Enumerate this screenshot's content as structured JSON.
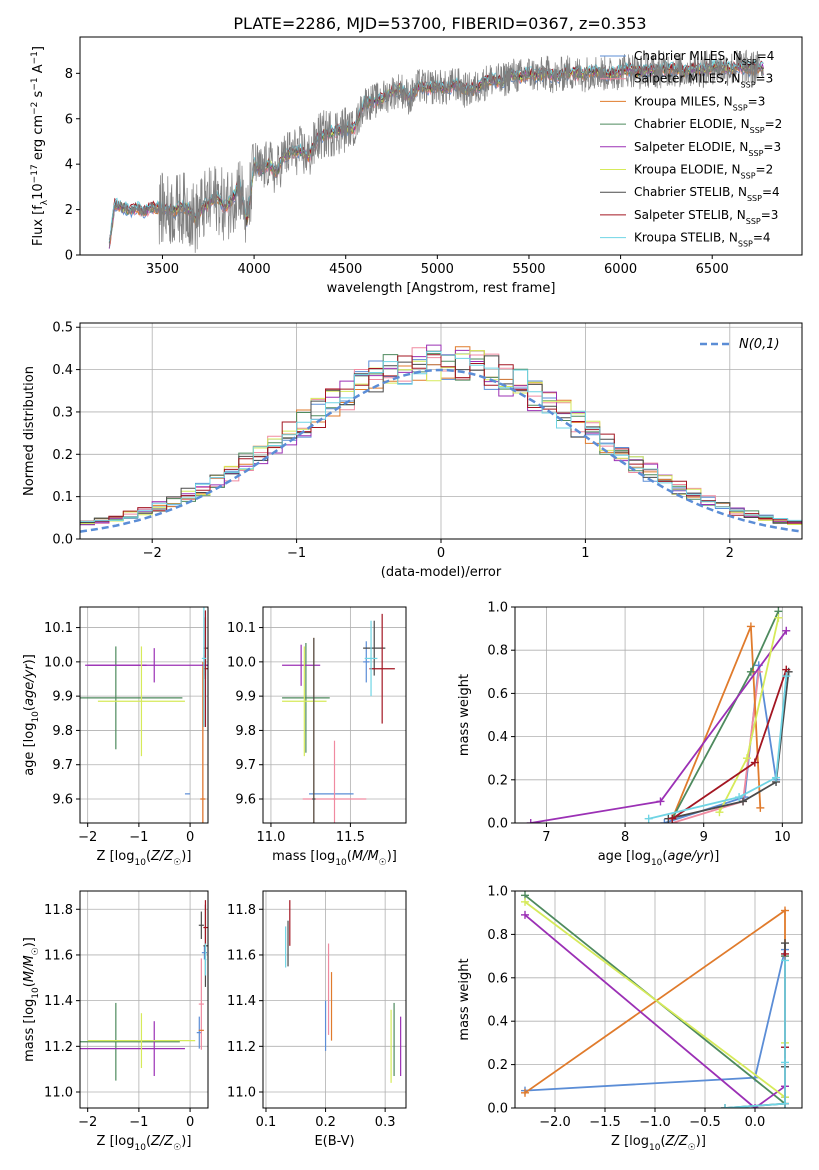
{
  "title": "PLATE=2286, MJD=53700, FIBERID=0367, z=0.353",
  "models": [
    {
      "name": "Chabrier MILES, N_SSP=4",
      "imf": "Chabrier",
      "lib": "MILES",
      "nssp": "4",
      "color": "#5b8dd6"
    },
    {
      "name": "Salpeter MILES, N_SSP=3",
      "imf": "Salpeter",
      "lib": "MILES",
      "nssp": "3",
      "color": "#f08aa0"
    },
    {
      "name": "Kroupa MILES, N_SSP=3",
      "imf": "Kroupa",
      "lib": "MILES",
      "nssp": "3",
      "color": "#e07b2c"
    },
    {
      "name": "Chabrier ELODIE, N_SSP=2",
      "imf": "Chabrier",
      "lib": "ELODIE",
      "nssp": "2",
      "color": "#4e8a5e"
    },
    {
      "name": "Salpeter ELODIE, N_SSP=3",
      "imf": "Salpeter",
      "lib": "ELODIE",
      "nssp": "3",
      "color": "#9b30b5"
    },
    {
      "name": "Kroupa ELODIE, N_SSP=2",
      "imf": "Kroupa",
      "lib": "ELODIE",
      "nssp": "2",
      "color": "#d6ea5a"
    },
    {
      "name": "Chabrier STELIB, N_SSP=4",
      "imf": "Chabrier",
      "lib": "STELIB",
      "nssp": "4",
      "color": "#4a4a4a"
    },
    {
      "name": "Salpeter STELIB, N_SSP=3",
      "imf": "Salpeter",
      "lib": "STELIB",
      "nssp": "3",
      "color": "#a31622"
    },
    {
      "name": "Kroupa STELIB, N_SSP=4",
      "imf": "Kroupa",
      "lib": "STELIB",
      "nssp": "4",
      "color": "#6fd4e4"
    }
  ],
  "observed_color": "#7f7f7f",
  "chart_data": [
    {
      "id": "spectrum",
      "type": "line",
      "xlabel": "wavelength [Angstrom, rest frame]",
      "ylabel": "Flux [f_λ 10^-17 erg cm^-2 s^-1 A^-1]",
      "xlim": [
        3050,
        6990
      ],
      "ylim": [
        0,
        9.6
      ],
      "xticks": [
        3500,
        4000,
        4500,
        5000,
        5500,
        6000,
        6500
      ],
      "yticks": [
        0,
        2,
        4,
        6,
        8
      ],
      "legend": "top-right",
      "x": [
        3210,
        3240,
        3280,
        3320,
        3360,
        3400,
        3440,
        3480,
        3520,
        3560,
        3600,
        3640,
        3680,
        3720,
        3760,
        3800,
        3840,
        3880,
        3920,
        3960,
        4000,
        4040,
        4080,
        4120,
        4160,
        4200,
        4250,
        4300,
        4350,
        4400,
        4450,
        4500,
        4550,
        4600,
        4650,
        4700,
        4750,
        4800,
        4850,
        4900,
        4950,
        5000,
        5050,
        5100,
        5150,
        5200,
        5250,
        5300,
        5350,
        5400,
        5450,
        5500,
        5550,
        5600,
        5650,
        5700,
        5750,
        5800,
        5850,
        5900,
        5950,
        6000,
        6050,
        6100,
        6150,
        6200,
        6250,
        6300,
        6350,
        6400,
        6450,
        6500,
        6550,
        6600,
        6650,
        6700,
        6770
      ],
      "model_flux": [
        0.4,
        2.2,
        2.1,
        1.95,
        2.05,
        1.9,
        2.1,
        2.05,
        2.0,
        1.95,
        2.1,
        2.05,
        1.55,
        2.1,
        2.3,
        2.55,
        2.1,
        2.4,
        3.2,
        1.4,
        4.0,
        3.7,
        4.05,
        3.6,
        4.35,
        4.5,
        4.6,
        4.35,
        5.2,
        5.35,
        5.45,
        5.55,
        5.6,
        6.7,
        6.75,
        6.9,
        7.15,
        7.3,
        6.9,
        7.45,
        7.35,
        7.45,
        7.3,
        7.55,
        7.25,
        7.3,
        7.55,
        7.75,
        7.6,
        7.95,
        7.85,
        8.0,
        7.9,
        8.0,
        7.8,
        8.05,
        8.0,
        7.95,
        8.1,
        8.0,
        7.95,
        8.1,
        8.2,
        8.05,
        8.15,
        8.1,
        8.2,
        8.15,
        8.1,
        8.2,
        8.15,
        8.3,
        8.25,
        8.2,
        8.3,
        8.2,
        8.25
      ]
    },
    {
      "id": "residuals",
      "type": "step",
      "xlabel": "(data-model)/error",
      "ylabel": "Normed distribution",
      "xlim": [
        -2.5,
        2.5
      ],
      "ylim": [
        0,
        0.51
      ],
      "xticks": [
        -2,
        -1,
        0,
        1,
        2
      ],
      "yticks": [
        0.0,
        0.1,
        0.2,
        0.3,
        0.4,
        0.5
      ],
      "grid": true,
      "legend": "top-right",
      "reference": {
        "label": "N(0,1)",
        "color": "#5b8dd6"
      },
      "bin_edges_start": -2.5,
      "bin_width": 0.1
    },
    {
      "id": "age_vs_Z",
      "type": "errorbar",
      "xlabel": "Z [log10(Z/Z☉)]",
      "ylabel": "age [log10(age/yr)]",
      "xlim": [
        -2.15,
        0.35
      ],
      "ylim": [
        9.53,
        10.16
      ],
      "xticks": [
        -2,
        -1,
        0
      ],
      "yticks": [
        9.6,
        9.7,
        9.8,
        9.9,
        10.0,
        10.1
      ],
      "grid": true,
      "points": [
        {
          "m": 0,
          "x": 0.3,
          "xe": 0.05,
          "y": 9.99,
          "ye": 0.03
        },
        {
          "m": 0,
          "x": -0.05,
          "xe": 0.05,
          "y": 9.615,
          "ye": 0.0
        },
        {
          "m": 1,
          "x": 0.25,
          "xe": 0.05,
          "y": 9.6,
          "ye": 0.4
        },
        {
          "m": 2,
          "x": 0.25,
          "xe": 0.05,
          "y": 9.6,
          "ye": 0.4
        },
        {
          "m": 3,
          "x": -1.45,
          "xe": 1.3,
          "y": 9.895,
          "ye": 0.15
        },
        {
          "m": 4,
          "x": -0.7,
          "xe": 1.3,
          "y": 9.99,
          "ye": 0.05
        },
        {
          "m": 4,
          "x": -1.45,
          "xe": 0.6,
          "y": 9.99,
          "ye": 0.0
        },
        {
          "m": 5,
          "x": -0.95,
          "xe": 0.85,
          "y": 9.885,
          "ye": 0.16
        },
        {
          "m": 6,
          "x": 0.3,
          "xe": 0.04,
          "y": 10.04,
          "ye": 0.09
        },
        {
          "m": 7,
          "x": 0.3,
          "xe": 0.04,
          "y": 9.98,
          "ye": 0.17
        },
        {
          "m": 8,
          "x": 0.27,
          "xe": 0.04,
          "y": 10.01,
          "ye": 0.2
        }
      ]
    },
    {
      "id": "age_vs_mass",
      "type": "errorbar",
      "xlabel": "mass [log10(M/M☉)]",
      "ylabel": "",
      "xlim": [
        10.95,
        11.85
      ],
      "ylim": [
        9.53,
        10.16
      ],
      "xticks": [
        11.0,
        11.5
      ],
      "yticks": [
        9.6,
        9.7,
        9.8,
        9.9,
        10.0,
        10.1
      ],
      "grid": true,
      "points": [
        {
          "m": 0,
          "x": 11.38,
          "xe": 0.14,
          "y": 9.615,
          "ye": 0.0
        },
        {
          "m": 0,
          "x": 11.6,
          "xe": 0.02,
          "y": 10.0,
          "ye": 0.06
        },
        {
          "m": 1,
          "x": 11.4,
          "xe": 0.2,
          "y": 9.6,
          "ye": 0.0
        },
        {
          "m": 1,
          "x": 11.4,
          "xe": 0.01,
          "y": 9.6,
          "ye": 0.17
        },
        {
          "m": 2,
          "x": 11.27,
          "xe": 0.0,
          "y": 9.6,
          "ye": 0.47
        },
        {
          "m": 3,
          "x": 11.22,
          "xe": 0.15,
          "y": 9.895,
          "ye": 0.16
        },
        {
          "m": 4,
          "x": 11.19,
          "xe": 0.12,
          "y": 9.99,
          "ye": 0.06
        },
        {
          "m": 5,
          "x": 11.21,
          "xe": 0.14,
          "y": 9.885,
          "ye": 0.16
        },
        {
          "m": 6,
          "x": 11.65,
          "xe": 0.07,
          "y": 10.04,
          "ye": 0.08
        },
        {
          "m": 7,
          "x": 11.7,
          "xe": 0.08,
          "y": 9.98,
          "ye": 0.16
        },
        {
          "m": 8,
          "x": 11.63,
          "xe": 0.04,
          "y": 10.01,
          "ye": 0.11
        },
        {
          "m": 6,
          "x": 11.27,
          "xe": 0.01,
          "y": 9.6,
          "ye": 0.47
        }
      ]
    },
    {
      "id": "weight_vs_age",
      "type": "line",
      "xlabel": "age [log10(age/yr)]",
      "ylabel": "mass weight",
      "xlim": [
        6.6,
        10.25
      ],
      "ylim": [
        0,
        1.0
      ],
      "xticks": [
        7,
        8,
        9,
        10
      ],
      "yticks": [
        0.0,
        0.2,
        0.4,
        0.6,
        0.8,
        1.0
      ],
      "grid": true,
      "series": [
        {
          "m": 0,
          "x": [
            8.5,
            9.52,
            9.7,
            9.92
          ],
          "y": [
            0.0,
            0.12,
            0.73,
            0.2
          ]
        },
        {
          "m": 1,
          "x": [
            8.6,
            9.5,
            9.7
          ],
          "y": [
            0.0,
            0.1,
            0.7
          ]
        },
        {
          "m": 2,
          "x": [
            8.6,
            9.6,
            9.72
          ],
          "y": [
            0.02,
            0.91,
            0.07
          ]
        },
        {
          "m": 3,
          "x": [
            8.6,
            9.6,
            9.95
          ],
          "y": [
            0.02,
            0.7,
            0.98
          ]
        },
        {
          "m": 4,
          "x": [
            6.8,
            8.45,
            10.05
          ],
          "y": [
            0.0,
            0.1,
            0.89
          ]
        },
        {
          "m": 5,
          "x": [
            9.2,
            9.55,
            9.95
          ],
          "y": [
            0.05,
            0.3,
            0.95
          ]
        },
        {
          "m": 6,
          "x": [
            8.55,
            9.5,
            9.92,
            10.08
          ],
          "y": [
            0.02,
            0.1,
            0.19,
            0.7
          ]
        },
        {
          "m": 7,
          "x": [
            8.6,
            9.65,
            10.05
          ],
          "y": [
            0.02,
            0.28,
            0.71
          ]
        },
        {
          "m": 8,
          "x": [
            8.3,
            9.45,
            9.92,
            10.05
          ],
          "y": [
            0.02,
            0.12,
            0.21,
            0.68
          ]
        }
      ]
    },
    {
      "id": "mass_vs_Z",
      "type": "errorbar",
      "xlabel": "Z [log10(Z/Z☉)]",
      "ylabel": "mass [log10(M/M☉)]",
      "xlim": [
        -2.15,
        0.35
      ],
      "ylim": [
        10.93,
        11.88
      ],
      "xticks": [
        -2,
        -1,
        0
      ],
      "yticks": [
        11.0,
        11.2,
        11.4,
        11.6,
        11.8
      ],
      "grid": true,
      "points": [
        {
          "m": 0,
          "x": 0.28,
          "xe": 0.05,
          "y": 11.61,
          "ye": 0.03
        },
        {
          "m": 0,
          "x": 0.18,
          "xe": 0.05,
          "y": 11.26,
          "ye": 0.07
        },
        {
          "m": 1,
          "x": 0.22,
          "xe": 0.05,
          "y": 11.385,
          "ye": 0.2
        },
        {
          "m": 2,
          "x": 0.22,
          "xe": 0.05,
          "y": 11.27,
          "ye": 0.0
        },
        {
          "m": 3,
          "x": -1.45,
          "xe": 1.25,
          "y": 11.22,
          "ye": 0.17
        },
        {
          "m": 4,
          "x": -1.15,
          "xe": 1.05,
          "y": 11.19,
          "ye": 0.0
        },
        {
          "m": 4,
          "x": -0.7,
          "xe": 0.0,
          "y": 11.19,
          "ye": 0.12
        },
        {
          "m": 5,
          "x": -0.95,
          "xe": 1.05,
          "y": 11.225,
          "ye": 0.12
        },
        {
          "m": 6,
          "x": 0.3,
          "xe": 0.04,
          "y": 11.64,
          "ye": 0.18
        },
        {
          "m": 7,
          "x": 0.3,
          "xe": 0.04,
          "y": 11.72,
          "ye": 0.12
        },
        {
          "m": 8,
          "x": 0.3,
          "xe": 0.02,
          "y": 11.58,
          "ye": 0.07
        },
        {
          "m": 6,
          "x": 0.22,
          "xe": 0.05,
          "y": 11.73,
          "ye": 0.06
        }
      ]
    },
    {
      "id": "mass_vs_ebv",
      "type": "errorbar",
      "xlabel": "E(B-V)",
      "ylabel": "",
      "xlim": [
        0.095,
        0.335
      ],
      "ylim": [
        10.93,
        11.88
      ],
      "xticks": [
        0.1,
        0.2,
        0.3
      ],
      "yticks": [
        11.0,
        11.2,
        11.4,
        11.6,
        11.8
      ],
      "grid": true,
      "points": [
        {
          "m": 0,
          "x": 0.2,
          "xe": 0.0,
          "y": 11.29,
          "ye": 0.11
        },
        {
          "m": 1,
          "x": 0.205,
          "xe": 0.0,
          "y": 11.45,
          "ye": 0.2
        },
        {
          "m": 2,
          "x": 0.21,
          "xe": 0.0,
          "y": 11.375,
          "ye": 0.15
        },
        {
          "m": 3,
          "x": 0.315,
          "xe": 0.0,
          "y": 11.23,
          "ye": 0.16
        },
        {
          "m": 4,
          "x": 0.326,
          "xe": 0.0,
          "y": 11.2,
          "ye": 0.13
        },
        {
          "m": 5,
          "x": 0.31,
          "xe": 0.0,
          "y": 11.2,
          "ye": 0.16
        },
        {
          "m": 6,
          "x": 0.137,
          "xe": 0.0,
          "y": 11.65,
          "ye": 0.1
        },
        {
          "m": 7,
          "x": 0.14,
          "xe": 0.0,
          "y": 11.74,
          "ye": 0.1
        },
        {
          "m": 8,
          "x": 0.133,
          "xe": 0.0,
          "y": 11.635,
          "ye": 0.09
        }
      ]
    },
    {
      "id": "weight_vs_Z",
      "type": "line",
      "xlabel": "Z [log10(Z/Z☉)]",
      "ylabel": "mass weight",
      "xlim": [
        -2.4,
        0.47
      ],
      "ylim": [
        0,
        1.0
      ],
      "xticks": [
        -2.0,
        -1.5,
        -1.0,
        -0.5,
        0.0
      ],
      "yticks": [
        0.0,
        0.2,
        0.4,
        0.6,
        0.8,
        1.0
      ],
      "grid": true,
      "series": [
        {
          "m": 0,
          "x": [
            -2.3,
            0.0,
            0.3,
            0.3
          ],
          "y": [
            0.08,
            0.14,
            0.73,
            0.05
          ]
        },
        {
          "m": 1,
          "x": [
            0.3,
            0.3,
            0.3
          ],
          "y": [
            0.1,
            0.7,
            0.02
          ]
        },
        {
          "m": 2,
          "x": [
            -2.3,
            0.3,
            0.3
          ],
          "y": [
            0.07,
            0.91,
            0.02
          ]
        },
        {
          "m": 3,
          "x": [
            -2.3,
            0.3,
            0.3
          ],
          "y": [
            0.98,
            0.02,
            0.7
          ]
        },
        {
          "m": 4,
          "x": [
            -2.3,
            0.0,
            0.3
          ],
          "y": [
            0.89,
            0.0,
            0.1
          ]
        },
        {
          "m": 5,
          "x": [
            -2.3,
            0.3,
            0.3
          ],
          "y": [
            0.95,
            0.05,
            0.3
          ]
        },
        {
          "m": 6,
          "x": [
            -0.3,
            0.3,
            0.3,
            0.3
          ],
          "y": [
            0.0,
            0.02,
            0.19,
            0.76
          ]
        },
        {
          "m": 7,
          "x": [
            0.3,
            0.3,
            0.3
          ],
          "y": [
            0.02,
            0.28,
            0.71
          ]
        },
        {
          "m": 8,
          "x": [
            -0.3,
            0.3,
            0.3,
            0.3
          ],
          "y": [
            0.0,
            0.02,
            0.21,
            0.68
          ]
        }
      ]
    }
  ]
}
